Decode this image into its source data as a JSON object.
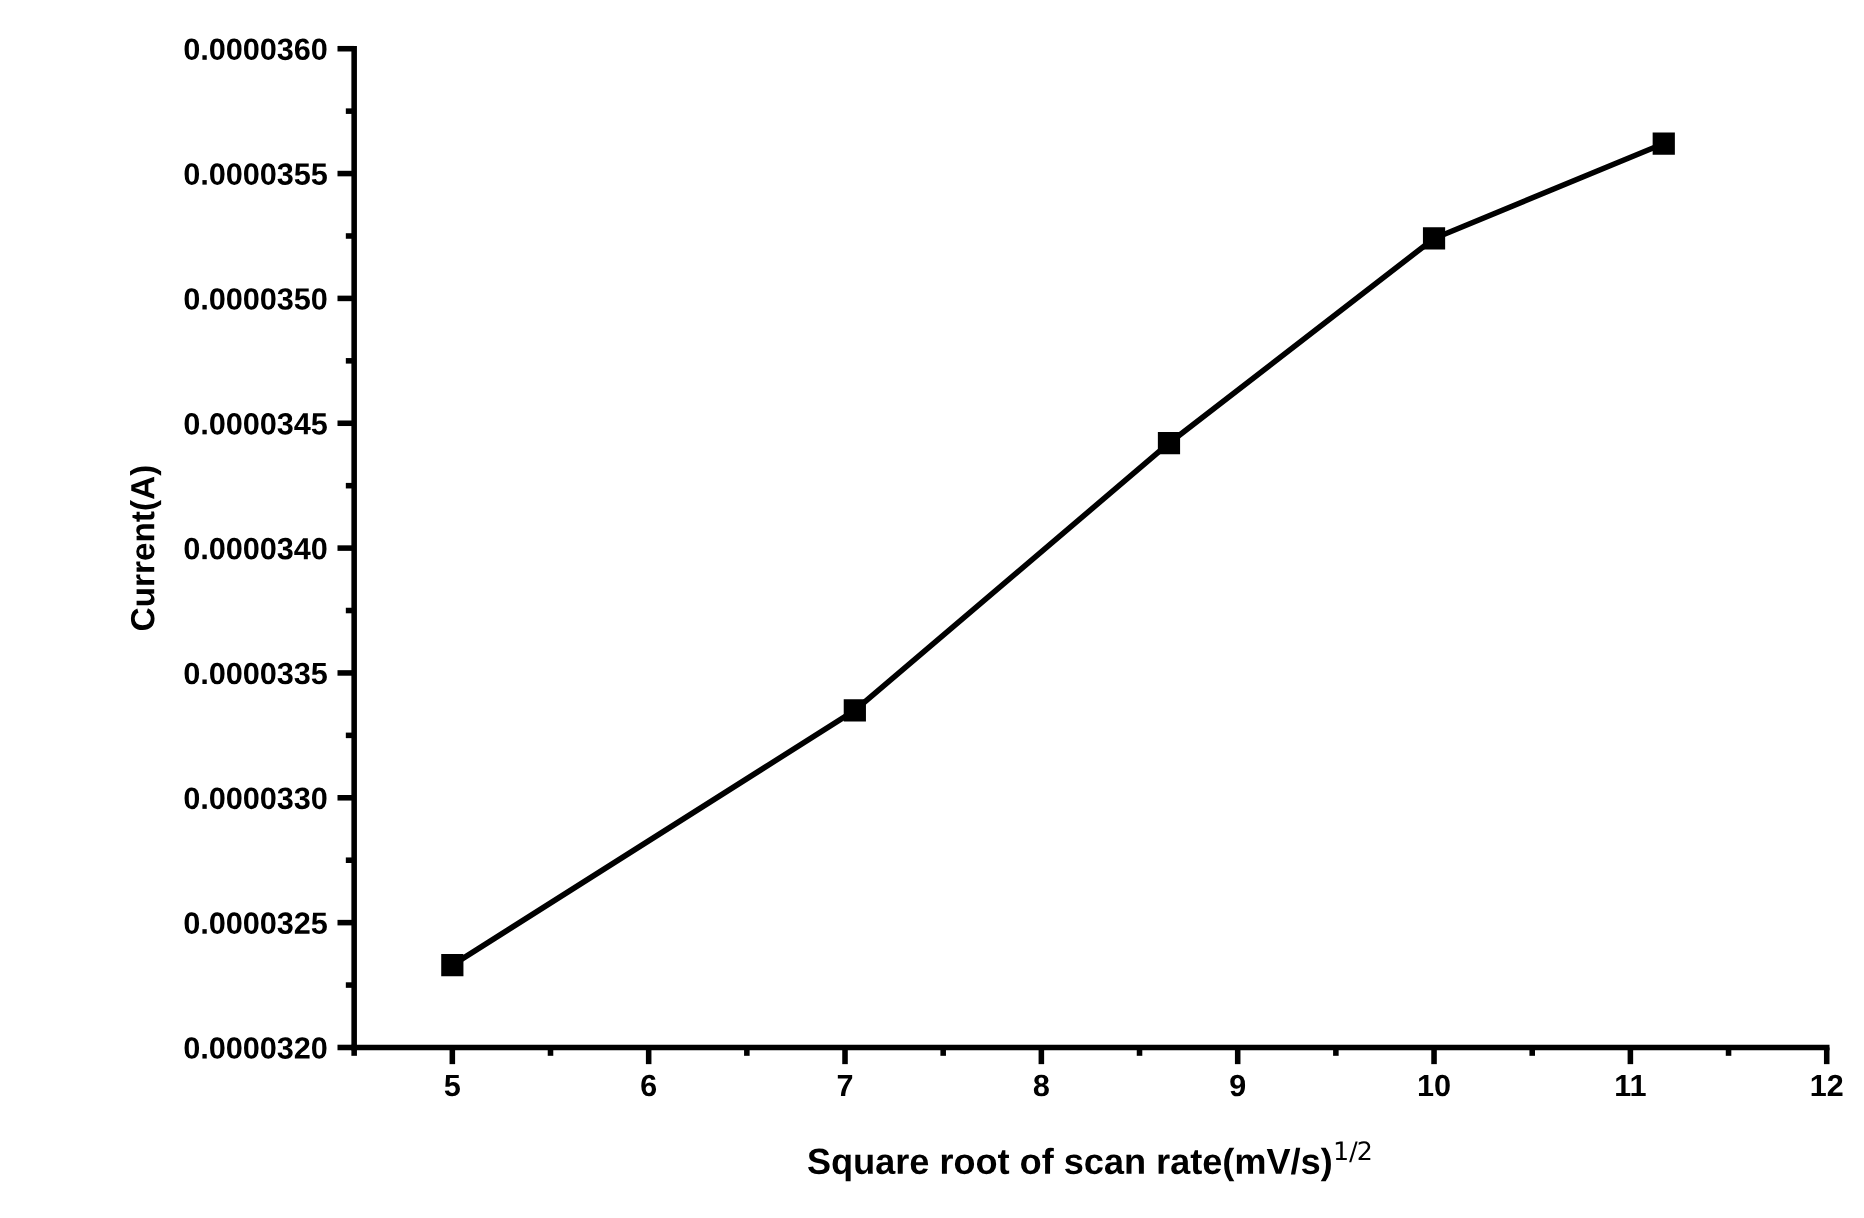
{
  "chart_data": {
    "type": "line",
    "xlabel": "Square root of scan rate(mV/s)$^{1/2}$",
    "ylabel": "Current(A)",
    "x": [
      5,
      7.05,
      8.65,
      10,
      11.17
    ],
    "values": [
      3.233e-05,
      3.335e-05,
      3.442e-05,
      3.524e-05,
      3.562e-05
    ],
    "color": "#000000",
    "marker": "square",
    "line_style": "solid",
    "grid": false,
    "xlim": [
      4.5,
      12
    ],
    "xticks": [
      5,
      6,
      7,
      8,
      9,
      10,
      11,
      12
    ],
    "ylim": [
      3.2e-05,
      3.6e-05
    ],
    "yticks": [
      {
        "value": 3.2e-05,
        "label": "0.0000320"
      },
      {
        "value": 3.25e-05,
        "label": "0.0000325"
      },
      {
        "value": 3.3e-05,
        "label": "0.0000330"
      },
      {
        "value": 3.35e-05,
        "label": "0.0000335"
      },
      {
        "value": 3.4e-05,
        "label": "0.0000340"
      },
      {
        "value": 3.45e-05,
        "label": "0.0000345"
      },
      {
        "value": 3.5e-05,
        "label": "0.0000350"
      },
      {
        "value": 3.55e-05,
        "label": "0.0000355"
      },
      {
        "value": 3.6e-05,
        "label": "0.0000360"
      }
    ]
  }
}
